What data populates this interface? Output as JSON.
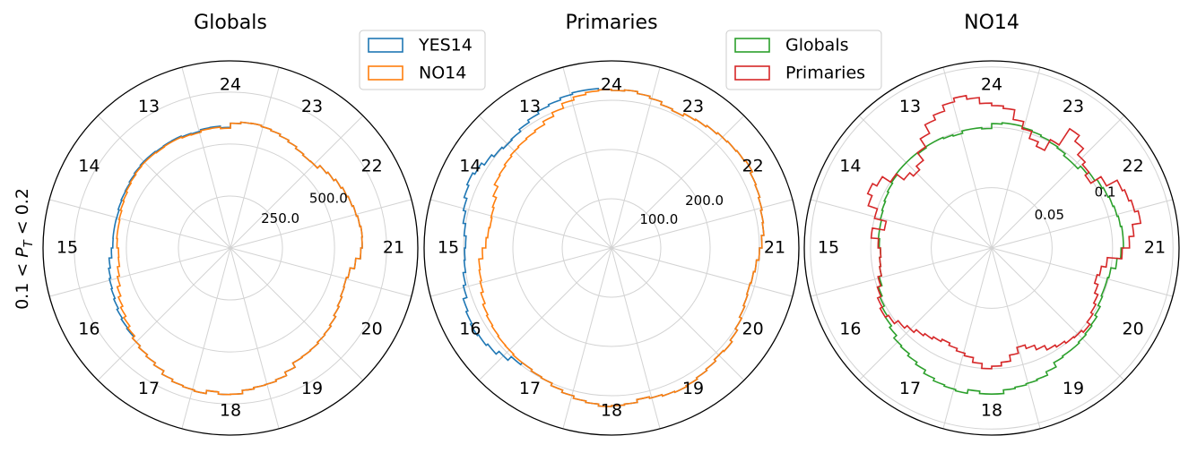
{
  "figure": {
    "ylabel": "0.1 < P_T < 0.2"
  },
  "colors": {
    "YES14": "#1f77b4",
    "NO14": "#ff7f0e",
    "Globals": "#2ca02c",
    "Primaries": "#d62728",
    "grid": "#d3d3d3",
    "frame": "#000000"
  },
  "chart_data": [
    {
      "type": "polar-step",
      "title": "Globals",
      "sector_labels": [
        "24",
        "23",
        "22",
        "21",
        "20",
        "19",
        "18",
        "17",
        "16",
        "15",
        "14",
        "13"
      ],
      "rmax": 900,
      "radial_ticks": [
        250.0,
        500.0
      ],
      "radial_tick_labels": [
        "250.0",
        "500.0"
      ],
      "legend": [
        "YES14",
        "NO14"
      ],
      "legend_position": "upper-right-outside",
      "series": [
        {
          "name": "YES14",
          "color": "#1f77b4",
          "values": [
            600,
            607,
            608,
            603,
            597,
            589,
            581,
            572,
            566,
            568,
            585,
            593,
            604,
            612,
            618,
            624,
            630,
            635,
            633,
            626,
            604,
            583,
            575,
            578,
            585,
            593,
            604,
            612,
            617,
            623,
            626,
            629,
            652,
            670,
            678,
            680,
            687,
            703,
            705,
            695,
            710,
            705,
            700,
            690,
            672,
            660,
            650,
            640,
            631,
            626,
            620,
            612,
            605,
            600,
            593,
            585,
            572,
            565,
            566,
            566,
            565,
            570,
            573,
            575,
            580,
            585,
            588,
            588,
            585,
            587,
            588,
            583,
            580,
            587,
            588,
            580
          ]
        },
        {
          "name": "NO14",
          "color": "#ff7f0e",
          "values": [
            600,
            607,
            608,
            603,
            597,
            589,
            581,
            572,
            566,
            568,
            585,
            593,
            604,
            612,
            618,
            624,
            630,
            635,
            633,
            626,
            604,
            583,
            575,
            578,
            585,
            593,
            604,
            612,
            617,
            623,
            626,
            629,
            652,
            670,
            678,
            680,
            687,
            703,
            705,
            695,
            710,
            705,
            700,
            690,
            672,
            660,
            650,
            640,
            625,
            612,
            600,
            588,
            575,
            560,
            550,
            540,
            538,
            545,
            548,
            548,
            552,
            558,
            563,
            570,
            575,
            580,
            583,
            583,
            580,
            583,
            583,
            578,
            575,
            582,
            583,
            576
          ]
        }
      ]
    },
    {
      "type": "polar-step",
      "title": "Primaries",
      "sector_labels": [
        "24",
        "23",
        "22",
        "21",
        "20",
        "19",
        "18",
        "17",
        "16",
        "15",
        "14",
        "13"
      ],
      "rmax": 380,
      "radial_ticks": [
        100.0,
        200.0
      ],
      "radial_tick_labels": [
        "100.0",
        "200.0"
      ],
      "legend": [],
      "series": [
        {
          "name": "YES14",
          "color": "#1f77b4",
          "values": [
            320,
            322,
            318,
            314,
            308,
            305,
            310,
            312,
            315,
            318,
            320,
            322,
            325,
            320,
            318,
            315,
            312,
            310,
            305,
            300,
            295,
            292,
            290,
            292,
            295,
            300,
            305,
            310,
            308,
            312,
            315,
            318,
            320,
            318,
            315,
            312,
            318,
            320,
            322,
            318,
            315,
            310,
            305,
            300,
            298,
            295,
            300,
            310,
            318,
            322,
            325,
            322,
            318,
            310,
            305,
            300,
            298,
            296,
            300,
            305,
            310,
            316,
            320,
            315,
            308,
            302,
            298,
            300,
            305,
            310,
            315,
            318,
            322,
            325,
            325,
            322
          ]
        },
        {
          "name": "NO14",
          "color": "#ff7f0e",
          "values": [
            320,
            322,
            318,
            314,
            308,
            305,
            310,
            312,
            315,
            318,
            320,
            322,
            325,
            320,
            318,
            315,
            312,
            310,
            305,
            300,
            295,
            292,
            290,
            292,
            295,
            300,
            305,
            310,
            308,
            312,
            315,
            318,
            320,
            318,
            315,
            312,
            318,
            320,
            322,
            318,
            315,
            310,
            305,
            300,
            298,
            295,
            295,
            293,
            292,
            290,
            288,
            285,
            280,
            275,
            272,
            270,
            262,
            255,
            252,
            250,
            252,
            255,
            262,
            270,
            272,
            275,
            278,
            280,
            282,
            285,
            292,
            300,
            310,
            316,
            320,
            322
          ]
        }
      ]
    },
    {
      "type": "polar-step",
      "title": "NO14",
      "sector_labels": [
        "24",
        "23",
        "22",
        "21",
        "20",
        "19",
        "18",
        "17",
        "16",
        "15",
        "14",
        "13"
      ],
      "rmax": 0.155,
      "radial_ticks": [
        0.05,
        0.1
      ],
      "radial_tick_labels": [
        "0.05",
        "0.1"
      ],
      "legend": [
        "Globals",
        "Primaries"
      ],
      "legend_position": "upper-right-outside",
      "series": [
        {
          "name": "Globals",
          "color": "#2ca02c",
          "values": [
            0.103,
            0.104,
            0.104,
            0.103,
            0.102,
            0.101,
            0.1,
            0.099,
            0.097,
            0.097,
            0.1,
            0.102,
            0.104,
            0.105,
            0.106,
            0.107,
            0.108,
            0.109,
            0.109,
            0.107,
            0.104,
            0.1,
            0.099,
            0.099,
            0.1,
            0.102,
            0.104,
            0.105,
            0.106,
            0.107,
            0.107,
            0.108,
            0.112,
            0.115,
            0.116,
            0.117,
            0.118,
            0.121,
            0.121,
            0.119,
            0.122,
            0.121,
            0.12,
            0.118,
            0.115,
            0.113,
            0.111,
            0.11,
            0.107,
            0.105,
            0.103,
            0.101,
            0.099,
            0.096,
            0.094,
            0.093,
            0.092,
            0.093,
            0.094,
            0.094,
            0.095,
            0.096,
            0.097,
            0.098,
            0.099,
            0.1,
            0.1,
            0.1,
            0.099,
            0.1,
            0.1,
            0.099,
            0.098,
            0.1,
            0.1,
            0.099
          ]
        },
        {
          "name": "Primaries",
          "color": "#d62728",
          "values": [
            0.118,
            0.116,
            0.108,
            0.102,
            0.096,
            0.092,
            0.102,
            0.118,
            0.112,
            0.105,
            0.102,
            0.098,
            0.108,
            0.118,
            0.12,
            0.122,
            0.125,
            0.118,
            0.114,
            0.108,
            0.096,
            0.092,
            0.09,
            0.093,
            0.096,
            0.098,
            0.1,
            0.103,
            0.101,
            0.1,
            0.098,
            0.096,
            0.092,
            0.088,
            0.085,
            0.09,
            0.095,
            0.098,
            0.1,
            0.096,
            0.092,
            0.09,
            0.088,
            0.086,
            0.088,
            0.09,
            0.092,
            0.095,
            0.098,
            0.102,
            0.105,
            0.103,
            0.1,
            0.097,
            0.094,
            0.093,
            0.092,
            0.094,
            0.1,
            0.09,
            0.1,
            0.108,
            0.112,
            0.108,
            0.1,
            0.092,
            0.088,
            0.092,
            0.1,
            0.108,
            0.116,
            0.12,
            0.125,
            0.128,
            0.125,
            0.12
          ]
        }
      ]
    }
  ]
}
